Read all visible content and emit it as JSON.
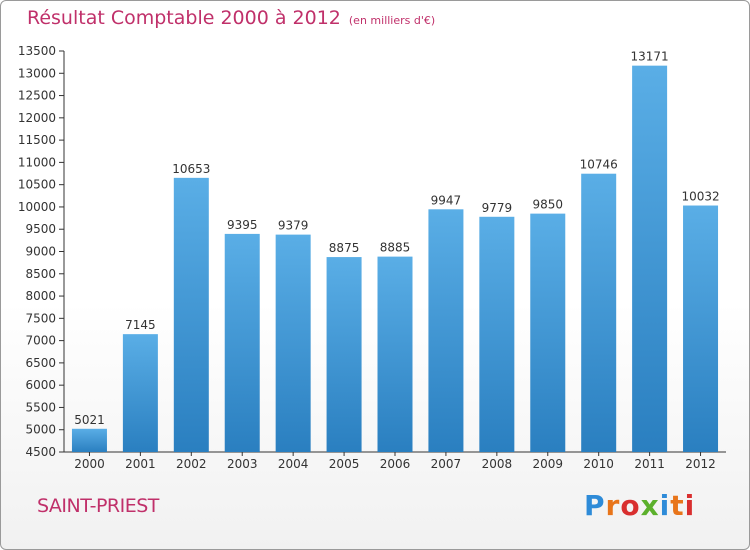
{
  "header": {
    "title": "Résultat Comptable 2000 à 2012",
    "unit": "(en milliers d'€)"
  },
  "footer": {
    "place": "SAINT-PRIEST",
    "logo": "Proxiti"
  },
  "colors": {
    "title": "#c0306a",
    "bar_top": "#5aaee6",
    "bar_bottom": "#2a7fc0",
    "axis": "#333333"
  },
  "chart_data": {
    "type": "bar",
    "title": "Résultat Comptable 2000 à 2012",
    "subtitle": "(en milliers d'€)",
    "categories": [
      "2000",
      "2001",
      "2002",
      "2003",
      "2004",
      "2005",
      "2006",
      "2007",
      "2008",
      "2009",
      "2010",
      "2011",
      "2012"
    ],
    "values": [
      5021,
      7145,
      10653,
      9395,
      9379,
      8875,
      8885,
      9947,
      9779,
      9850,
      10746,
      13171,
      10032
    ],
    "value_labels": [
      "5021",
      "7145",
      "10653",
      "9395",
      "9379",
      "8875",
      "8885",
      "9947",
      "9779",
      "9850",
      "10746",
      "13171",
      "10032"
    ],
    "ylim": [
      4500,
      13500
    ],
    "yticks": [
      4500,
      5000,
      5500,
      6000,
      6500,
      7000,
      7500,
      8000,
      8500,
      9000,
      9500,
      10000,
      10500,
      11000,
      11500,
      12000,
      12500,
      13000,
      13500
    ],
    "xlabel": "",
    "ylabel": "",
    "grid": false,
    "legend": "none"
  }
}
